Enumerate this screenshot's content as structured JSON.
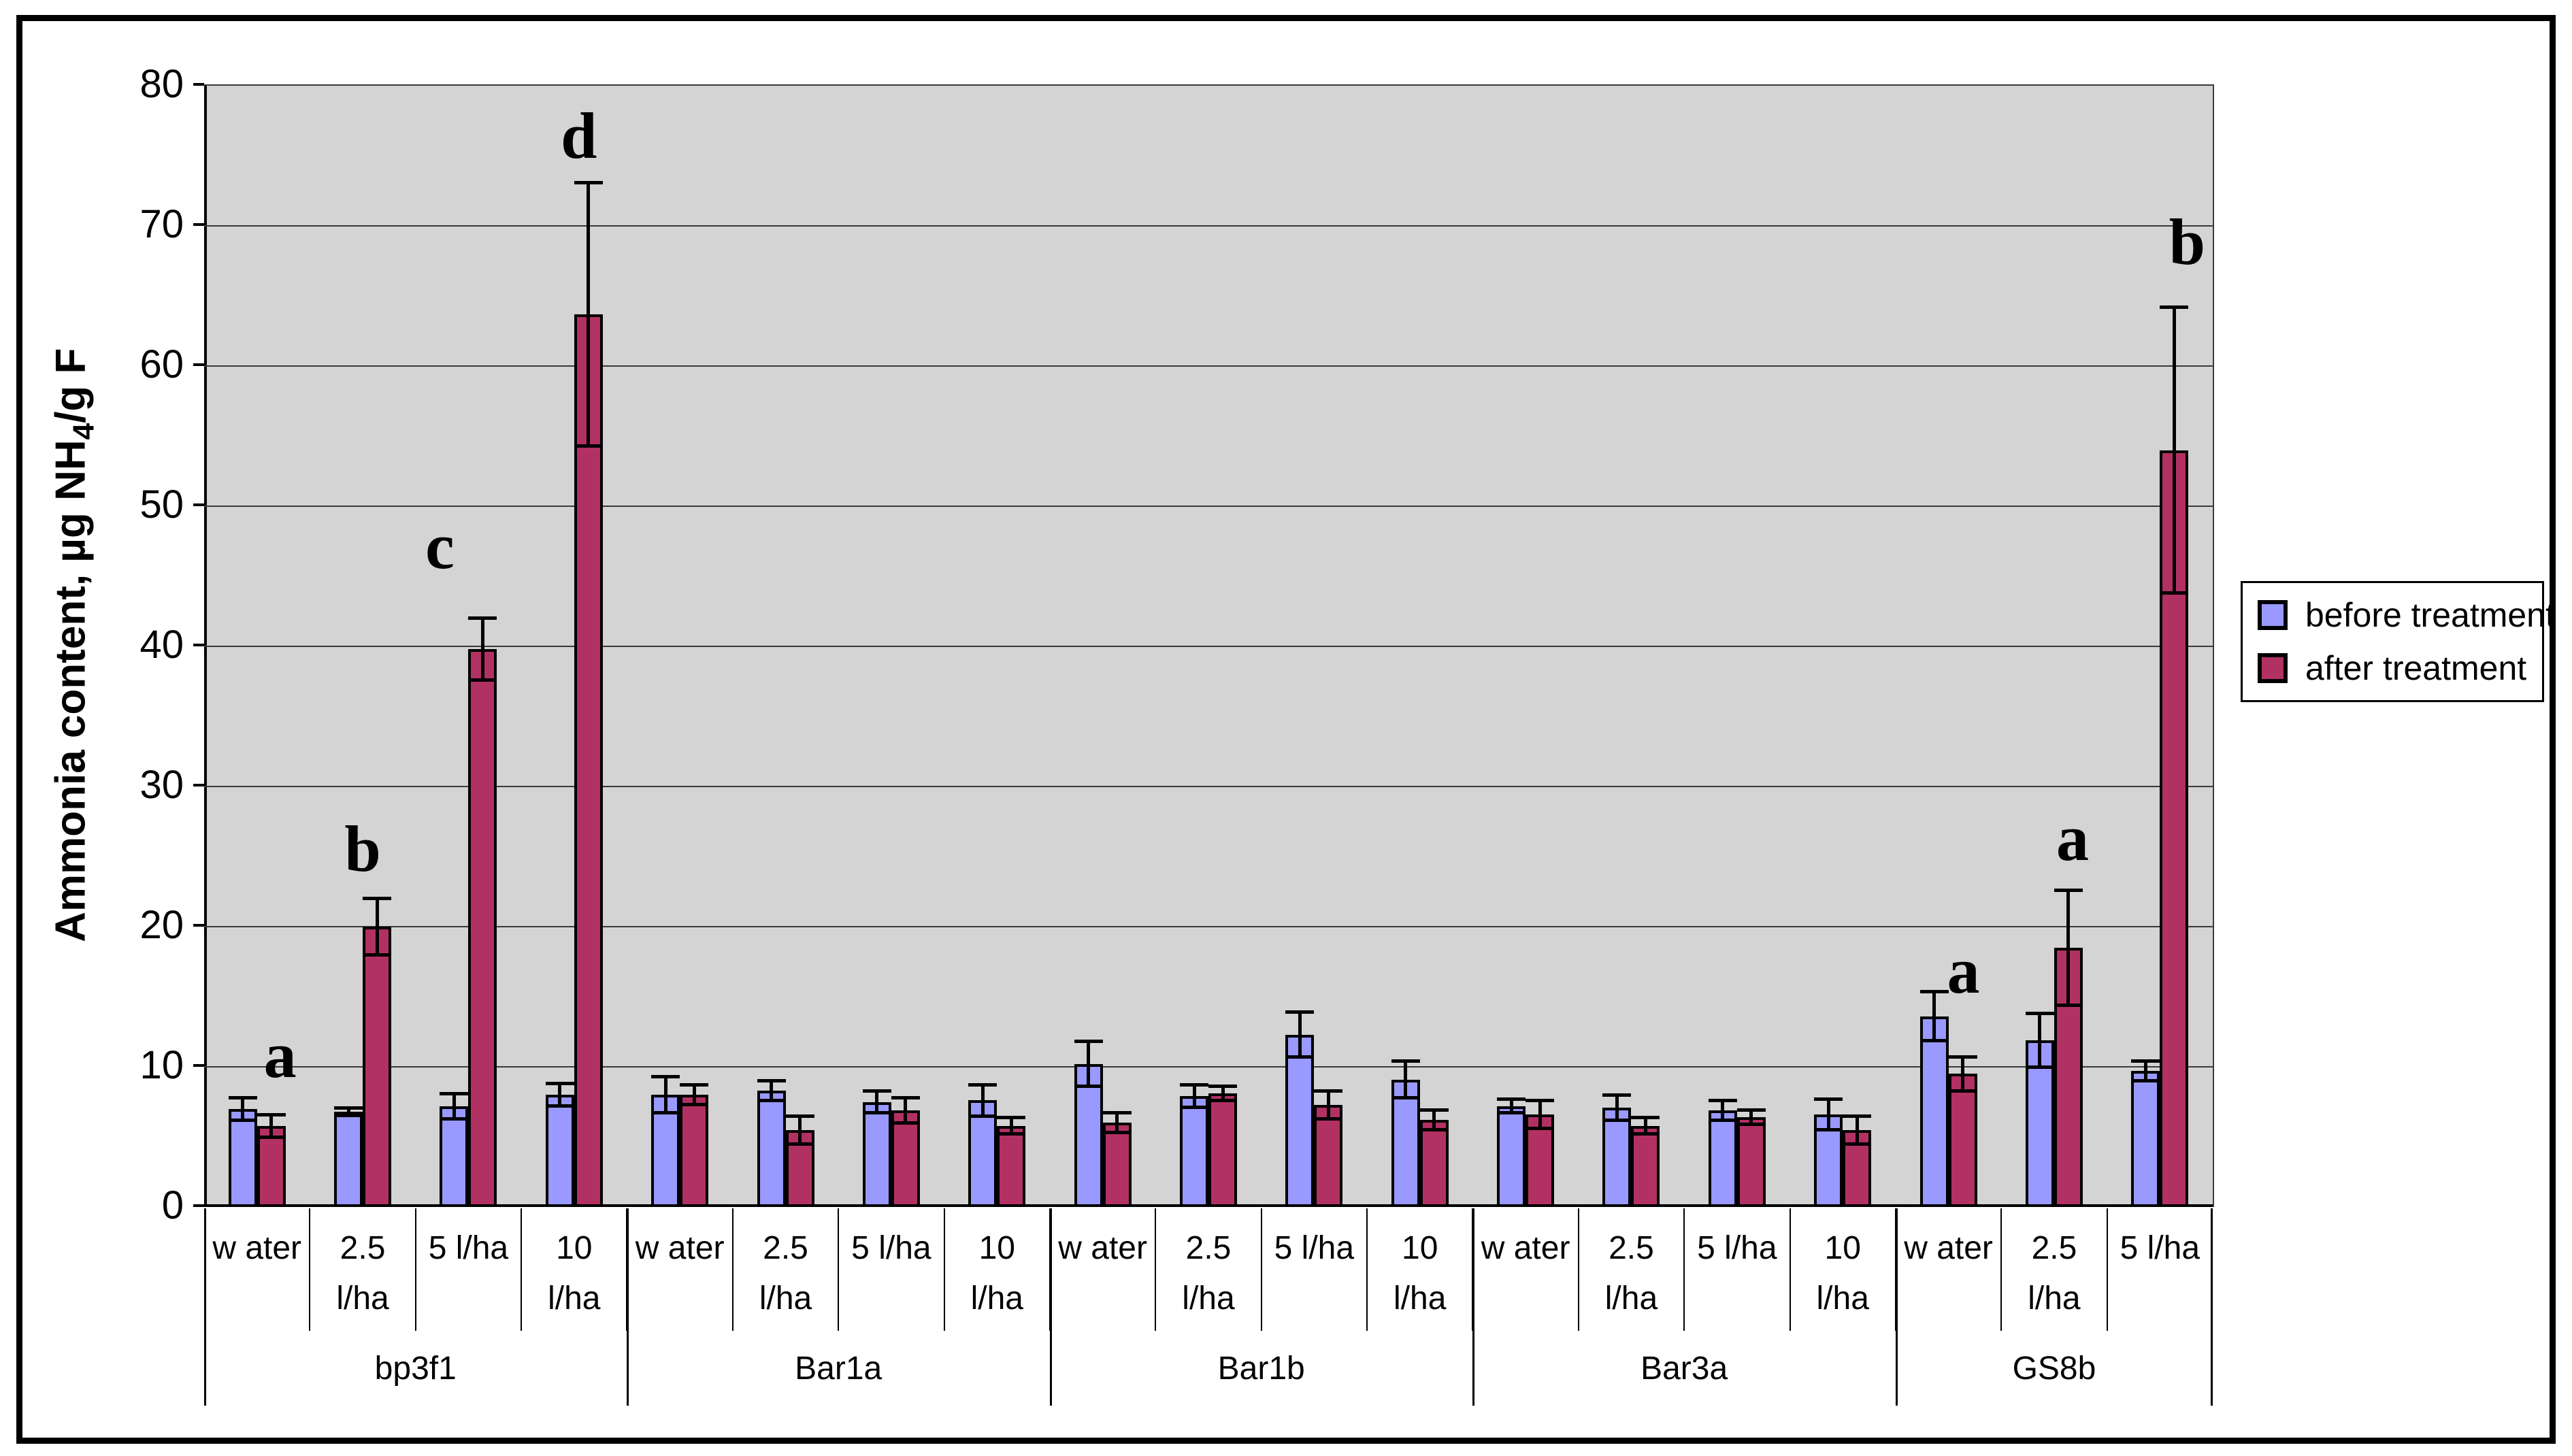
{
  "y_axis": {
    "title_prefix": "Ammonia content, µg NH",
    "title_sub": "4",
    "title_suffix": "/g F",
    "ticks": [
      0,
      10,
      20,
      30,
      40,
      50,
      60,
      70,
      80
    ],
    "max": 80,
    "major_unit": 10
  },
  "legend": {
    "items": [
      {
        "label": "before treatment",
        "color": "#9999FF"
      },
      {
        "label": "after treatment",
        "color": "#B23163"
      }
    ]
  },
  "colors": {
    "before": "#9999FF",
    "after": "#B23163",
    "plot_background": "#D4D4D4",
    "gridline": "#3A3A3A"
  },
  "chart_data": {
    "type": "bar",
    "title": "",
    "ylabel": "Ammonia content, µg NH4/g F",
    "ylim": [
      0,
      80
    ],
    "grid": true,
    "legend_position": "right",
    "series_names": [
      "before treatment",
      "after treatment"
    ],
    "groups": [
      {
        "name": "bp3f1",
        "treatments": [
          {
            "label_lines": [
              "w ater"
            ],
            "before": 7.0,
            "before_err": 0.8,
            "after": 5.8,
            "after_err": 0.8,
            "letter": "a",
            "letter_y": 8.5,
            "letter_dx": 34
          },
          {
            "label_lines": [
              "2.5",
              "l/ha"
            ],
            "before": 6.8,
            "before_err": 0.25,
            "after": 20.0,
            "after_err": 2.0,
            "letter": "b",
            "letter_y": 23.2,
            "letter_dx": 0
          },
          {
            "label_lines": [
              "5 l/ha"
            ],
            "before": 7.2,
            "before_err": 0.9,
            "after": 39.8,
            "after_err": 2.2,
            "letter": "c",
            "letter_y": 44.8,
            "letter_dx": -42
          },
          {
            "label_lines": [
              "10",
              "l/ha"
            ],
            "before": 8.0,
            "before_err": 0.8,
            "after": 63.7,
            "after_err": 9.4,
            "letter": "d",
            "letter_y": 74.1,
            "letter_dx": 7
          }
        ]
      },
      {
        "name": "Bar1a",
        "treatments": [
          {
            "label_lines": [
              "w ater"
            ],
            "before": 8.0,
            "before_err": 1.3,
            "after": 8.0,
            "after_err": 0.7
          },
          {
            "label_lines": [
              "2.5",
              "l/ha"
            ],
            "before": 8.3,
            "before_err": 0.7,
            "after": 5.5,
            "after_err": 1.0
          },
          {
            "label_lines": [
              "5 l/ha"
            ],
            "before": 7.5,
            "before_err": 0.8,
            "after": 6.9,
            "after_err": 0.9
          },
          {
            "label_lines": [
              "10",
              "l/ha"
            ],
            "before": 7.6,
            "before_err": 1.1,
            "after": 5.8,
            "after_err": 0.6
          }
        ]
      },
      {
        "name": "Bar1b",
        "treatments": [
          {
            "label_lines": [
              "w ater"
            ],
            "before": 10.2,
            "before_err": 1.6,
            "after": 6.0,
            "after_err": 0.7
          },
          {
            "label_lines": [
              "2.5",
              "l/ha"
            ],
            "before": 7.9,
            "before_err": 0.8,
            "after": 8.1,
            "after_err": 0.5
          },
          {
            "label_lines": [
              "5 l/ha"
            ],
            "before": 12.3,
            "before_err": 1.6,
            "after": 7.3,
            "after_err": 1.0
          },
          {
            "label_lines": [
              "10",
              "l/ha"
            ],
            "before": 9.1,
            "before_err": 1.3,
            "after": 6.2,
            "after_err": 0.7
          }
        ]
      },
      {
        "name": "Bar3a",
        "treatments": [
          {
            "label_lines": [
              "w ater"
            ],
            "before": 7.2,
            "before_err": 0.5,
            "after": 6.6,
            "after_err": 1.0
          },
          {
            "label_lines": [
              "2.5",
              "l/ha"
            ],
            "before": 7.1,
            "before_err": 0.9,
            "after": 5.8,
            "after_err": 0.6
          },
          {
            "label_lines": [
              "5 l/ha"
            ],
            "before": 6.9,
            "before_err": 0.7,
            "after": 6.4,
            "after_err": 0.5
          },
          {
            "label_lines": [
              "10",
              "l/ha"
            ],
            "before": 6.6,
            "before_err": 1.1,
            "after": 5.5,
            "after_err": 1.0
          }
        ]
      },
      {
        "name": "GS8b",
        "treatments": [
          {
            "label_lines": [
              "w ater"
            ],
            "before": 13.6,
            "before_err": 1.75,
            "after": 9.5,
            "after_err": 1.2,
            "letter": "a",
            "letter_y": 14.5,
            "letter_dx": 22
          },
          {
            "label_lines": [
              "2.5",
              "l/ha"
            ],
            "before": 11.9,
            "before_err": 1.9,
            "after": 18.5,
            "after_err": 4.1,
            "letter": "a",
            "letter_y": 24.0,
            "letter_dx": 27
          },
          {
            "label_lines": [
              "5 l/ha"
            ],
            "before": 9.7,
            "before_err": 0.7,
            "after": 54.0,
            "after_err": 10.2,
            "letter": "b",
            "letter_y": 66.5,
            "letter_dx": 40
          }
        ]
      }
    ]
  }
}
